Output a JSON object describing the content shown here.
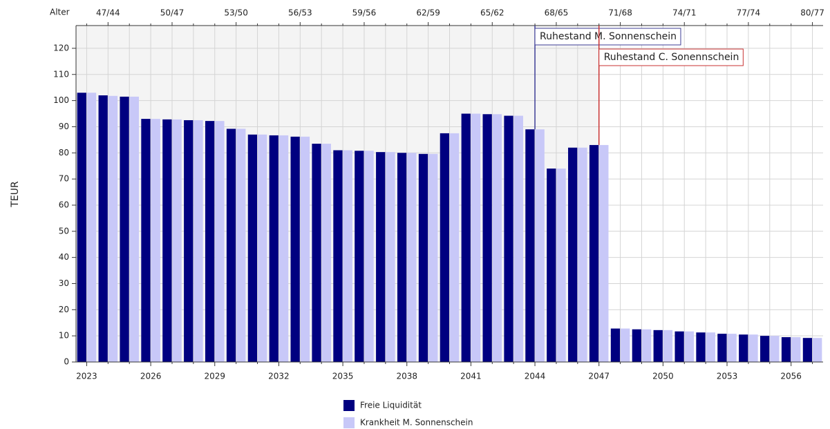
{
  "chart_data": {
    "type": "bar",
    "y_label": "TEUR",
    "top_axis_title": "Alter",
    "categories": [
      "2023",
      null,
      null,
      "2026",
      null,
      null,
      "2029",
      null,
      null,
      "2032",
      null,
      null,
      "2035",
      null,
      null,
      "2038",
      null,
      null,
      "2041",
      null,
      null,
      "2044",
      null,
      null,
      "2047",
      null,
      null,
      "2050",
      null,
      null,
      "2053",
      null,
      null,
      "2056",
      null
    ],
    "top_labels": [
      null,
      "47/44",
      null,
      null,
      "50/47",
      null,
      null,
      "53/50",
      null,
      null,
      "56/53",
      null,
      null,
      "59/56",
      null,
      null,
      "62/59",
      null,
      null,
      "65/62",
      null,
      null,
      "68/65",
      null,
      null,
      "71/68",
      null,
      null,
      "74/71",
      null,
      null,
      "77/74",
      null,
      null,
      "80/77"
    ],
    "series": [
      {
        "name": "Freie Liquidität",
        "color": "#000080",
        "values": [
          103,
          102,
          101.5,
          93,
          92.8,
          92.5,
          92.2,
          89.2,
          87,
          86.7,
          86.2,
          83.5,
          81,
          80.8,
          80.3,
          80,
          79.6,
          87.5,
          95,
          94.8,
          94.2,
          89,
          74,
          82,
          83,
          12.8,
          12.5,
          12.2,
          11.7,
          11.3,
          10.8,
          10.5,
          10,
          9.5,
          9.2
        ]
      },
      {
        "name": "Krankheit M. Sonnenschein",
        "color": "#c8c8f8",
        "values": [
          103,
          101.8,
          101.5,
          93,
          92.8,
          92.5,
          92.2,
          89.2,
          87,
          86.7,
          86.2,
          83.5,
          81,
          80.8,
          80.3,
          80,
          79.6,
          87.5,
          95,
          94.8,
          94.2,
          89,
          74,
          82,
          83,
          12.8,
          12.5,
          12.2,
          11.7,
          11.3,
          10.8,
          10.5,
          10,
          9.5,
          9.2
        ]
      }
    ],
    "annotations": [
      {
        "text": "Ruhestand M. Sonnenschein",
        "category": "2044",
        "color": "#3c3c96"
      },
      {
        "text": "Ruhestand C. Sonennschein",
        "category": "2047",
        "color": "#c83232"
      }
    ],
    "ylim": [
      0,
      128.7
    ],
    "yticks": [
      0,
      10,
      20,
      30,
      40,
      50,
      60,
      70,
      80,
      90,
      100,
      110,
      120
    ],
    "grid": true,
    "legend": "bottom"
  }
}
